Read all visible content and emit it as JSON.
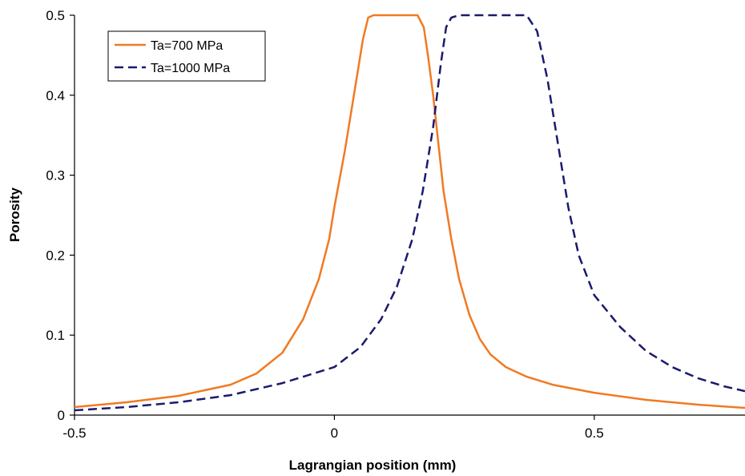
{
  "chart_data": {
    "type": "line",
    "title": "",
    "xlabel": "Lagrangian position (mm)",
    "ylabel": "Porosity",
    "xlim": [
      -0.5,
      0.79
    ],
    "ylim": [
      0,
      0.5
    ],
    "x_ticks": [
      -0.5,
      0,
      0.5
    ],
    "x_tick_labels": [
      "-0.5",
      "0",
      "0.5"
    ],
    "y_ticks": [
      0,
      0.1,
      0.2,
      0.3,
      0.4,
      0.5
    ],
    "y_tick_labels": [
      "0",
      "0.1",
      "0.2",
      "0.3",
      "0.4",
      "0.5"
    ],
    "grid": false,
    "legend_position": "top-left",
    "series": [
      {
        "name": "Ta=700 MPa",
        "color": "#f07a22",
        "style": "solid",
        "points": [
          [
            -0.5,
            0.01
          ],
          [
            -0.4,
            0.016
          ],
          [
            -0.3,
            0.024
          ],
          [
            -0.2,
            0.038
          ],
          [
            -0.15,
            0.052
          ],
          [
            -0.1,
            0.078
          ],
          [
            -0.06,
            0.12
          ],
          [
            -0.03,
            0.17
          ],
          [
            -0.01,
            0.22
          ],
          [
            0.0,
            0.26
          ],
          [
            0.02,
            0.33
          ],
          [
            0.04,
            0.41
          ],
          [
            0.055,
            0.47
          ],
          [
            0.065,
            0.497
          ],
          [
            0.075,
            0.5
          ],
          [
            0.1,
            0.5
          ],
          [
            0.13,
            0.5
          ],
          [
            0.16,
            0.5
          ],
          [
            0.172,
            0.485
          ],
          [
            0.18,
            0.45
          ],
          [
            0.19,
            0.4
          ],
          [
            0.2,
            0.34
          ],
          [
            0.21,
            0.28
          ],
          [
            0.225,
            0.22
          ],
          [
            0.24,
            0.17
          ],
          [
            0.26,
            0.125
          ],
          [
            0.28,
            0.095
          ],
          [
            0.3,
            0.076
          ],
          [
            0.33,
            0.06
          ],
          [
            0.37,
            0.048
          ],
          [
            0.42,
            0.038
          ],
          [
            0.5,
            0.028
          ],
          [
            0.6,
            0.019
          ],
          [
            0.7,
            0.013
          ],
          [
            0.79,
            0.009
          ]
        ]
      },
      {
        "name": "Ta=1000 MPa",
        "color": "#1a1a6e",
        "style": "dashed",
        "points": [
          [
            -0.5,
            0.006
          ],
          [
            -0.4,
            0.01
          ],
          [
            -0.3,
            0.016
          ],
          [
            -0.2,
            0.025
          ],
          [
            -0.1,
            0.04
          ],
          [
            0.0,
            0.06
          ],
          [
            0.05,
            0.085
          ],
          [
            0.09,
            0.12
          ],
          [
            0.12,
            0.16
          ],
          [
            0.15,
            0.22
          ],
          [
            0.17,
            0.28
          ],
          [
            0.19,
            0.36
          ],
          [
            0.205,
            0.44
          ],
          [
            0.215,
            0.485
          ],
          [
            0.225,
            0.497
          ],
          [
            0.24,
            0.5
          ],
          [
            0.3,
            0.5
          ],
          [
            0.37,
            0.5
          ],
          [
            0.39,
            0.48
          ],
          [
            0.41,
            0.42
          ],
          [
            0.43,
            0.34
          ],
          [
            0.45,
            0.26
          ],
          [
            0.47,
            0.2
          ],
          [
            0.5,
            0.15
          ],
          [
            0.55,
            0.11
          ],
          [
            0.6,
            0.08
          ],
          [
            0.65,
            0.06
          ],
          [
            0.7,
            0.046
          ],
          [
            0.75,
            0.036
          ],
          [
            0.79,
            0.03
          ]
        ]
      }
    ]
  }
}
